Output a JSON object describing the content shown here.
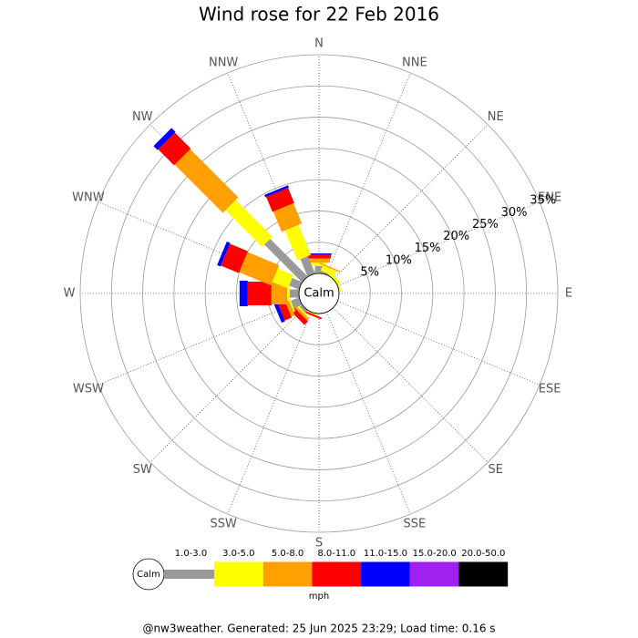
{
  "chart_data": {
    "type": "windrose",
    "title": "Wind rose for 22 Feb 2016",
    "directions": [
      "N",
      "NNE",
      "NE",
      "ENE",
      "E",
      "ESE",
      "SE",
      "SSE",
      "S",
      "SSW",
      "SW",
      "WSW",
      "W",
      "WNW",
      "NW",
      "NNW"
    ],
    "calm_label": "Calm",
    "unit": "mph",
    "ylim": [
      0,
      35
    ],
    "yticks": [
      {
        "value": 5,
        "label": "5%"
      },
      {
        "value": 10,
        "label": "10%"
      },
      {
        "value": 15,
        "label": "15%"
      },
      {
        "value": 20,
        "label": "20%"
      },
      {
        "value": 25,
        "label": "25%"
      },
      {
        "value": 30,
        "label": "30%"
      },
      {
        "value": 35,
        "label": "35%"
      }
    ],
    "series": [
      {
        "name": "1.0-3.0",
        "color": "#999999",
        "values": [
          1.2,
          0.3,
          0,
          0,
          0,
          0,
          0,
          0,
          0,
          0,
          0.5,
          1.4,
          1.5,
          1.7,
          8.5,
          3
        ]
      },
      {
        "name": "3.0-5.0",
        "color": "#ffff00",
        "values": [
          0.5,
          0.9,
          0.5,
          0.3,
          0,
          0,
          0,
          0,
          0,
          0.2,
          0.3,
          0.3,
          0.4,
          2.7,
          8.3,
          5.2
        ]
      },
      {
        "name": "5.0-8.0",
        "color": "#ffa000",
        "values": [
          0.7,
          0.2,
          0,
          0,
          0,
          0,
          0,
          0,
          0,
          0,
          0.4,
          0.6,
          2.5,
          5.5,
          10.9,
          3.5
        ]
      },
      {
        "name": "8.0-11.0",
        "color": "#ff0000",
        "values": [
          0.6,
          0,
          0,
          0,
          0,
          0,
          0,
          0,
          0,
          0.3,
          0.8,
          1.2,
          3.8,
          3.1,
          3.6,
          2.6
        ]
      },
      {
        "name": "11.0-15.0",
        "color": "#0000ff",
        "values": [
          0.2,
          0,
          0,
          0,
          0,
          0,
          0,
          0,
          0,
          0,
          0,
          0.6,
          1.3,
          0.6,
          0.9,
          0.4
        ]
      },
      {
        "name": "15.0-20.0",
        "color": "#a020f0",
        "values": [
          0,
          0,
          0,
          0,
          0,
          0,
          0,
          0,
          0,
          0,
          0,
          0,
          0,
          0,
          0,
          0
        ]
      },
      {
        "name": "20.0-50.0",
        "color": "#000000",
        "values": [
          0,
          0,
          0,
          0,
          0,
          0,
          0,
          0,
          0,
          0,
          0,
          0,
          0,
          0,
          0,
          0
        ]
      }
    ]
  },
  "footer": "@nw3weather. Generated: 25 Jun 2025 23:29; Load time: 0.16 s"
}
